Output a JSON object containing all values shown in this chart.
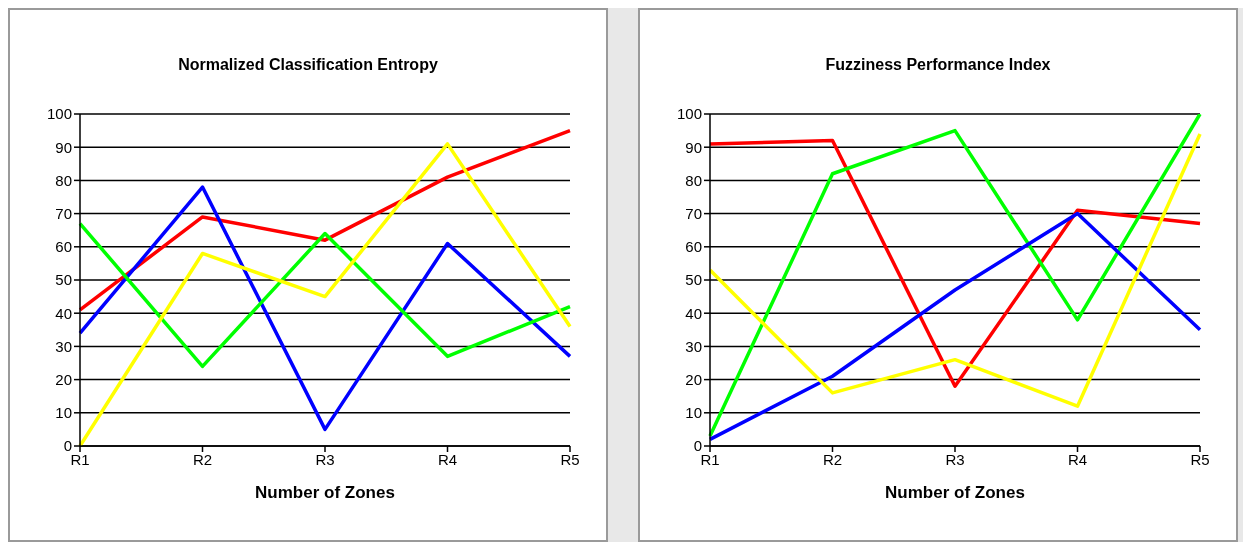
{
  "chart_data": [
    {
      "type": "line",
      "title": "Normalized Classification Entropy",
      "xlabel": "Number of Zones",
      "categories": [
        "R1",
        "R2",
        "R3",
        "R4",
        "R5"
      ],
      "ylim": [
        0,
        100
      ],
      "yticks": [
        0,
        10,
        20,
        30,
        40,
        50,
        60,
        70,
        80,
        90,
        100
      ],
      "grid": "y",
      "legend": false,
      "marker": "none",
      "line_style": "solid",
      "series": [
        {
          "color": "#ff0000",
          "values": [
            41,
            69,
            62,
            81,
            95
          ]
        },
        {
          "color": "#0000ff",
          "values": [
            34,
            78,
            5,
            61,
            27
          ]
        },
        {
          "color": "#00ff00",
          "values": [
            67,
            24,
            64,
            27,
            42
          ]
        },
        {
          "color": "#ffff00",
          "values": [
            0,
            58,
            45,
            91,
            36
          ]
        }
      ]
    },
    {
      "type": "line",
      "title": "Fuzziness Performance Index",
      "xlabel": "Number of Zones",
      "categories": [
        "R1",
        "R2",
        "R3",
        "R4",
        "R5"
      ],
      "ylim": [
        0,
        100
      ],
      "yticks": [
        0,
        10,
        20,
        30,
        40,
        50,
        60,
        70,
        80,
        90,
        100
      ],
      "grid": "y",
      "legend": false,
      "marker": "none",
      "line_style": "solid",
      "series": [
        {
          "color": "#ff0000",
          "values": [
            91,
            92,
            18,
            71,
            67
          ]
        },
        {
          "color": "#00ff00",
          "values": [
            3,
            82,
            95,
            38,
            100
          ]
        },
        {
          "color": "#0000ff",
          "values": [
            2,
            21,
            47,
            70,
            35
          ]
        },
        {
          "color": "#ffff00",
          "values": [
            53,
            16,
            26,
            12,
            94
          ]
        }
      ]
    }
  ]
}
